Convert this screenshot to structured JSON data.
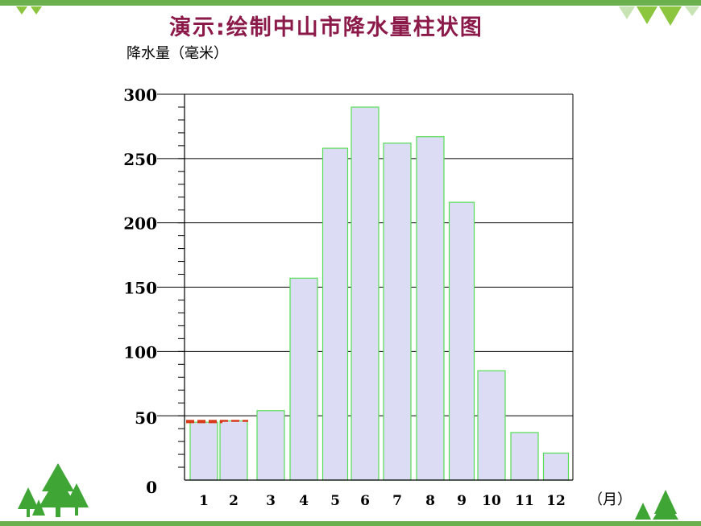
{
  "slide": {
    "title": "演示:绘制中山市降水量柱状图"
  },
  "chart_data": {
    "type": "bar",
    "ylabel": "降水量（毫米）",
    "xunit": "（月）",
    "categories": [
      "1",
      "2",
      "3",
      "4",
      "5",
      "6",
      "7",
      "8",
      "9",
      "10",
      "11",
      "12"
    ],
    "values": [
      45,
      46,
      54,
      157,
      258,
      290,
      262,
      267,
      216,
      85,
      37,
      21
    ],
    "ylim": [
      0,
      300
    ],
    "yticks": [
      0,
      50,
      100,
      150,
      200,
      250,
      300
    ],
    "grid": true,
    "colors": {
      "bar_fill": "#dcdcf5",
      "bar_stroke": "#55dd55",
      "gridline": "#000000",
      "guide_dash": "#d83a1a",
      "title": "#8b1a4a",
      "accent": "#6ab04c"
    }
  }
}
